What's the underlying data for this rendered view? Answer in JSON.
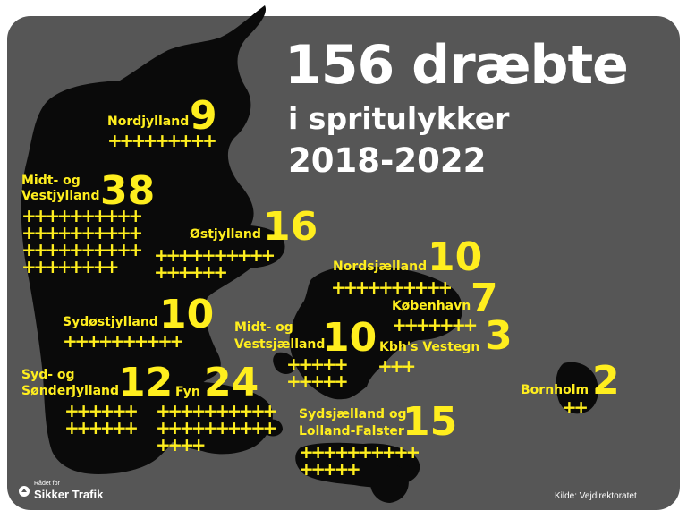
{
  "title": {
    "line1": "156 dræbte",
    "line2": "i spritulykker",
    "line3": "2018-2022"
  },
  "colors": {
    "background": "#565656",
    "land": "#0a0a0a",
    "accent": "#ffee1e",
    "text": "#ffffff"
  },
  "regions": [
    {
      "name": "Nordjylland",
      "count": 9,
      "crosses": "+++++++++"
    },
    {
      "name_line1": "Midt- og",
      "name_line2": "Vestjylland",
      "count": 38,
      "crosses": "++++++++++\n++++++++++\n++++++++++\n++++++++"
    },
    {
      "name": "Østjylland",
      "count": 16,
      "crosses": "++++++++++\n++++++"
    },
    {
      "name": "Sydøstjylland",
      "count": 10,
      "crosses": "++++++++++"
    },
    {
      "name_line1": "Syd- og",
      "name_line2": "Sønderjylland",
      "count": 12,
      "crosses": "++++++\n++++++"
    },
    {
      "name": "Fyn",
      "count": 24,
      "crosses": "++++++++++\n++++++++++\n++++"
    },
    {
      "name": "Nordsjælland",
      "count": 10,
      "crosses": "++++++++++"
    },
    {
      "name": "København",
      "count": 7,
      "crosses": "+++++++"
    },
    {
      "name": "Kbh's Vestegn",
      "count": 3,
      "crosses": "+++"
    },
    {
      "name_line1": "Midt- og",
      "name_line2": "Vestsjælland",
      "count": 10,
      "crosses": "+++++\n+++++"
    },
    {
      "name_line1": "Sydsjælland og",
      "name_line2": "Lolland-Falster",
      "count": 15,
      "crosses": "++++++++++\n+++++"
    },
    {
      "name": "Bornholm",
      "count": 2,
      "crosses": "++"
    }
  ],
  "logo": {
    "small": "Rådet for",
    "big": "Sikker Trafik",
    "icon": "traffic-council-emblem-icon"
  },
  "source": "Kilde: Vejdirektoratet"
}
